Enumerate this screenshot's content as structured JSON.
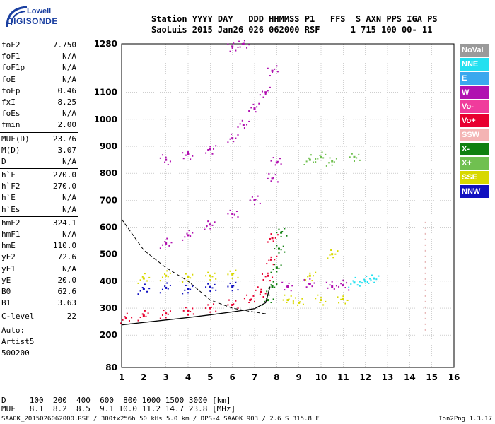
{
  "logo": {
    "line1": "Lowell",
    "line2": "DIGISONDE"
  },
  "header": {
    "line1": "Station YYYY DAY   DDD HHMMSS P1   FFS  S AXN PPS IGA PS",
    "line2": "SaoLuis 2015 Jan26 026 062000 RSF      1 715 100 00- 11"
  },
  "params_group1": [
    {
      "name": "foF2",
      "value": "7.750"
    },
    {
      "name": "foF1",
      "value": "N/A"
    },
    {
      "name": "foF1p",
      "value": "N/A"
    },
    {
      "name": "foE",
      "value": "N/A"
    },
    {
      "name": "foEp",
      "value": "0.46"
    },
    {
      "name": "fxI",
      "value": "8.25"
    },
    {
      "name": "foEs",
      "value": "N/A"
    },
    {
      "name": "fmin",
      "value": "2.00"
    }
  ],
  "params_group2": [
    {
      "name": "MUF(D)",
      "value": "23.76"
    },
    {
      "name": "M(D)",
      "value": "3.07"
    },
    {
      "name": "D",
      "value": "N/A"
    }
  ],
  "params_group3": [
    {
      "name": "h`F",
      "value": "270.0"
    },
    {
      "name": "h`F2",
      "value": "270.0"
    },
    {
      "name": "h`E",
      "value": "N/A"
    },
    {
      "name": "h`Es",
      "value": "N/A"
    }
  ],
  "params_group4": [
    {
      "name": "hmF2",
      "value": "324.1"
    },
    {
      "name": "hmF1",
      "value": "N/A"
    },
    {
      "name": "hmE",
      "value": "110.0"
    },
    {
      "name": "yF2",
      "value": "72.6"
    },
    {
      "name": "yF1",
      "value": "N/A"
    },
    {
      "name": "yE",
      "value": "20.0"
    },
    {
      "name": "B0",
      "value": "62.6"
    },
    {
      "name": "B1",
      "value": "3.63"
    }
  ],
  "params_group5": [
    {
      "name": "C-level",
      "value": "22"
    }
  ],
  "auto": {
    "line1": "Auto:",
    "line2": "Artist5",
    "line3": "500200"
  },
  "legend": [
    {
      "label": "NoVal",
      "color": "#9a9a9a"
    },
    {
      "label": "NNE",
      "color": "#22e0f0"
    },
    {
      "label": "E",
      "color": "#3aa8ee"
    },
    {
      "label": "W",
      "color": "#b010b0"
    },
    {
      "label": "Vo-",
      "color": "#f03c9c"
    },
    {
      "label": "Vo+",
      "color": "#e80030"
    },
    {
      "label": "SSW",
      "color": "#f4b4b4"
    },
    {
      "label": "X-",
      "color": "#108010"
    },
    {
      "label": "X+",
      "color": "#70c050"
    },
    {
      "label": "SSE",
      "color": "#d8d800"
    },
    {
      "label": "NNW",
      "color": "#1010c0"
    }
  ],
  "footer": {
    "line1": "D     100  200  400  600  800 1000 1500 3000 [km]",
    "line2": "MUF   8.1  8.2  8.5  9.1 10.0 11.2 14.7 23.8 [MHz]",
    "line3": "SAA0K_2015026062000.RSF / 300fx256h 50 kHs 5.0 km / DPS-4 SAA0K 903 / 2.6 S 315.8 E",
    "version": "Ion2Png 1.3.17"
  },
  "chart_data": {
    "type": "scatter",
    "title": "",
    "xlabel": "",
    "ylabel": "",
    "xlim": [
      1,
      16
    ],
    "ylim": [
      80,
      1280
    ],
    "x_ticks": [
      1,
      2,
      3,
      4,
      5,
      6,
      7,
      8,
      9,
      10,
      11,
      12,
      13,
      14,
      15,
      16
    ],
    "y_ticks": [
      80,
      200,
      300,
      400,
      500,
      600,
      700,
      800,
      900,
      1000,
      1100,
      1280
    ],
    "grid": true,
    "legend_position": "right",
    "series": [
      {
        "name": "Vo+",
        "color": "#e80030",
        "points": [
          [
            1.2,
            262
          ],
          [
            2,
            272
          ],
          [
            3,
            280
          ],
          [
            4,
            290
          ],
          [
            5,
            300
          ],
          [
            6,
            312
          ],
          [
            6.8,
            330
          ],
          [
            7.3,
            360
          ],
          [
            7.6,
            420
          ],
          [
            7.75,
            480
          ],
          [
            7.8,
            560
          ]
        ]
      },
      {
        "name": "X-",
        "color": "#108010",
        "points": [
          [
            7.6,
            330
          ],
          [
            7.8,
            380
          ],
          [
            8.0,
            450
          ],
          [
            8.1,
            520
          ],
          [
            8.2,
            580
          ]
        ]
      },
      {
        "name": "W",
        "color": "#b010b0",
        "points": [
          [
            3,
            540
          ],
          [
            4,
            570
          ],
          [
            5,
            610
          ],
          [
            6,
            650
          ],
          [
            7,
            700
          ],
          [
            7.8,
            780
          ],
          [
            8,
            840
          ],
          [
            3,
            850
          ],
          [
            4,
            870
          ],
          [
            5,
            890
          ],
          [
            6,
            930
          ],
          [
            6.5,
            980
          ],
          [
            7,
            1040
          ],
          [
            7.5,
            1100
          ],
          [
            7.8,
            1180
          ],
          [
            6,
            1270
          ],
          [
            6.5,
            1280
          ],
          [
            8.5,
            380
          ],
          [
            9.5,
            390
          ],
          [
            10.5,
            380
          ],
          [
            11,
            385
          ]
        ]
      },
      {
        "name": "SSE",
        "color": "#d8d800",
        "points": [
          [
            2,
            410
          ],
          [
            3,
            420
          ],
          [
            4,
            415
          ],
          [
            5,
            420
          ],
          [
            6,
            425
          ],
          [
            8.5,
            330
          ],
          [
            9,
            320
          ],
          [
            10,
            330
          ],
          [
            11,
            335
          ],
          [
            9.5,
            420
          ],
          [
            10.5,
            500
          ]
        ]
      },
      {
        "name": "NNE",
        "color": "#22e0f0",
        "points": [
          [
            11.5,
            395
          ],
          [
            12,
            400
          ],
          [
            12.4,
            410
          ]
        ]
      },
      {
        "name": "NNW",
        "color": "#1010c0",
        "points": [
          [
            2,
            370
          ],
          [
            3,
            375
          ],
          [
            4,
            372
          ],
          [
            5,
            378
          ],
          [
            6,
            380
          ]
        ]
      },
      {
        "name": "X+",
        "color": "#70c050",
        "points": [
          [
            9.5,
            850
          ],
          [
            10,
            860
          ],
          [
            10.5,
            845
          ],
          [
            11.5,
            860
          ]
        ]
      }
    ],
    "curves": {
      "profile": [
        [
          1,
          238
        ],
        [
          2,
          247
        ],
        [
          3,
          256
        ],
        [
          4,
          265
        ],
        [
          5,
          275
        ],
        [
          6,
          286
        ],
        [
          7,
          298
        ],
        [
          7.5,
          320
        ],
        [
          7.7,
          380
        ]
      ],
      "model_dashed": [
        [
          1,
          630
        ],
        [
          2,
          515
        ],
        [
          3,
          450
        ],
        [
          4,
          400
        ],
        [
          5,
          330
        ],
        [
          6,
          300
        ],
        [
          7,
          285
        ],
        [
          7.6,
          278
        ]
      ]
    },
    "vertical_markers_x": [
      14.7
    ]
  }
}
